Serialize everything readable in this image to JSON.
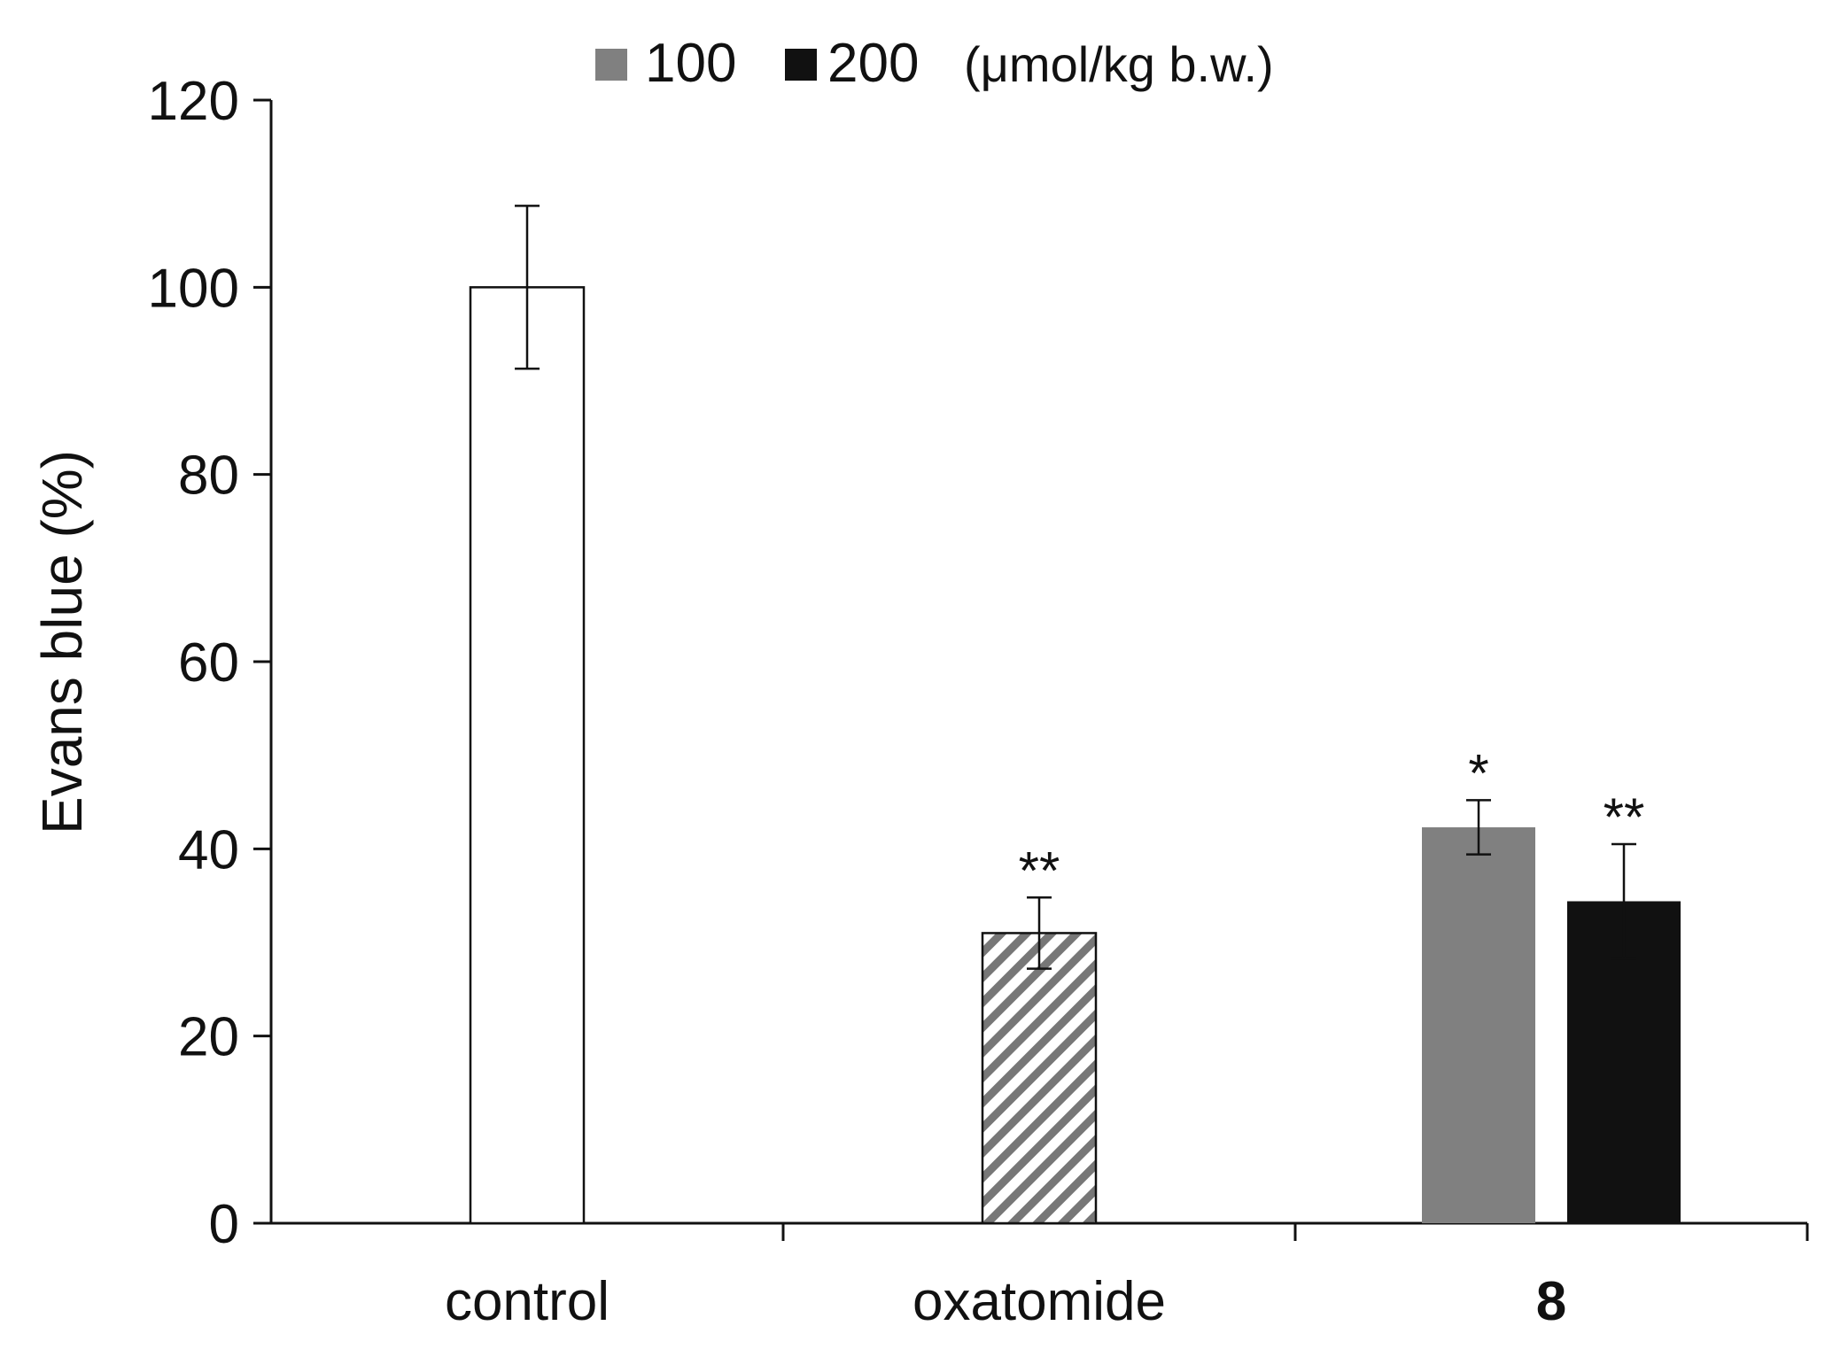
{
  "chart_data": {
    "type": "bar",
    "title": "",
    "xlabel": "",
    "ylabel": "Evans blue (%)",
    "ylim": [
      0,
      120
    ],
    "yticks": [
      0,
      20,
      40,
      60,
      80,
      100,
      120
    ],
    "grid": false,
    "legend": {
      "placement": "top-center",
      "entries": [
        {
          "label": "100",
          "color": "#808080"
        },
        {
          "label": "200",
          "color": "#111111"
        }
      ],
      "unit": "(μmol/kg b.w.)"
    },
    "groups": [
      {
        "label": "control",
        "bold": false,
        "bars": [
          {
            "name": "control",
            "value": 100,
            "error": 8.7,
            "fill": "white",
            "significance": ""
          }
        ]
      },
      {
        "label": "oxatomide",
        "bold": false,
        "bars": [
          {
            "name": "oxatomide",
            "value": 31,
            "error": 3.8,
            "fill": "hatch",
            "significance": "**"
          }
        ]
      },
      {
        "label": "8",
        "bold": true,
        "bars": [
          {
            "name": "8 100 μmol/kg",
            "value": 42.3,
            "error": 2.9,
            "fill": "#808080",
            "significance": "*"
          },
          {
            "name": "8 200 μmol/kg",
            "value": 34.4,
            "error": 6.1,
            "fill": "#111111",
            "significance": "**"
          }
        ]
      }
    ]
  }
}
